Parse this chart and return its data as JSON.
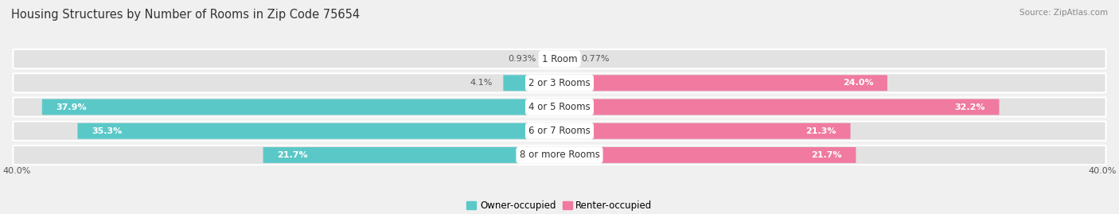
{
  "title": "Housing Structures by Number of Rooms in Zip Code 75654",
  "source": "Source: ZipAtlas.com",
  "categories": [
    "1 Room",
    "2 or 3 Rooms",
    "4 or 5 Rooms",
    "6 or 7 Rooms",
    "8 or more Rooms"
  ],
  "owner_values": [
    0.93,
    4.1,
    37.9,
    35.3,
    21.7
  ],
  "renter_values": [
    0.77,
    24.0,
    32.2,
    21.3,
    21.7
  ],
  "owner_color": "#5BC8C8",
  "renter_color": "#F07AA0",
  "owner_label": "Owner-occupied",
  "renter_label": "Renter-occupied",
  "axis_max": 40.0,
  "axis_label_left": "40.0%",
  "axis_label_right": "40.0%",
  "bg_color": "#f0f0f0",
  "bar_bg_color": "#e2e2e2",
  "bar_separator_color": "#ffffff",
  "title_fontsize": 10.5,
  "source_fontsize": 7.5,
  "bar_height": 0.62,
  "label_fontsize": 8,
  "cat_fontsize": 8.5
}
